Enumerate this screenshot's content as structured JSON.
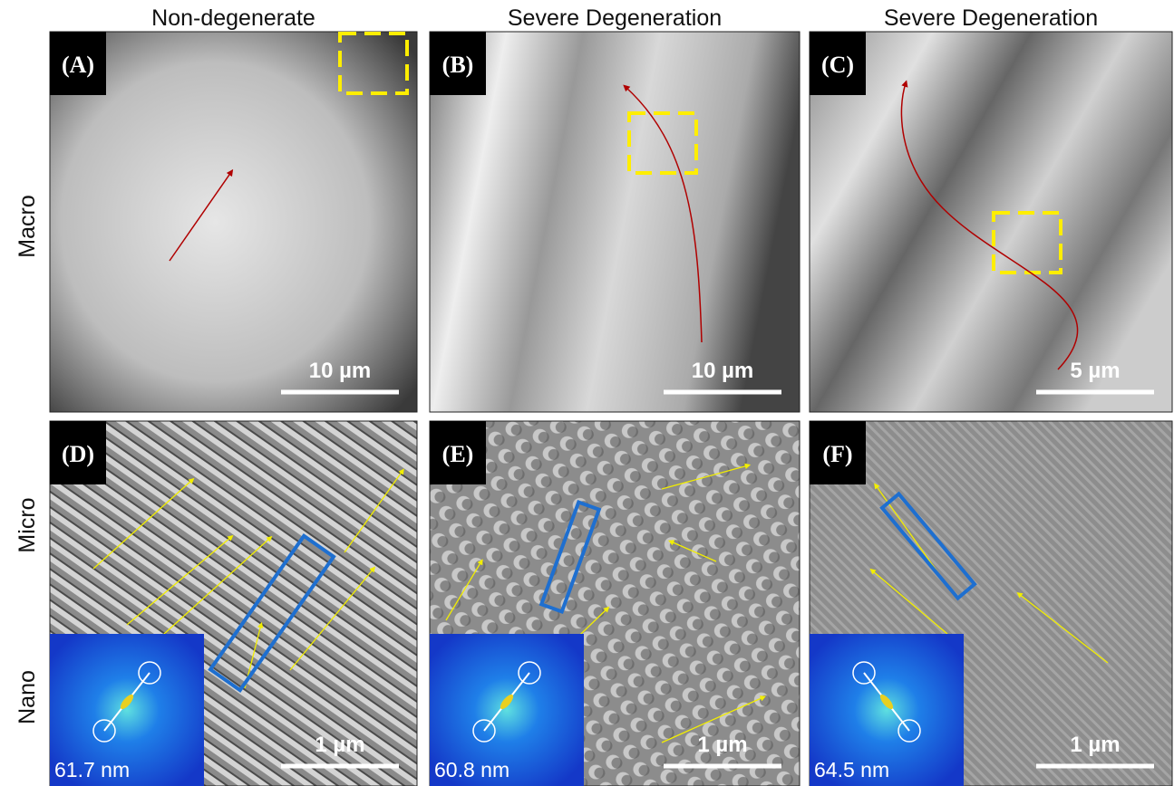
{
  "column_titles": [
    "Non-degenerate",
    "Severe Degeneration",
    "Severe Degeneration"
  ],
  "row_labels": [
    "Macro",
    "Micro",
    "Nano"
  ],
  "panels": [
    {
      "label": "(A)",
      "scale_bar": "10 µm"
    },
    {
      "label": "(B)",
      "scale_bar": "10 µm"
    },
    {
      "label": "(C)",
      "scale_bar": "5 µm"
    },
    {
      "label": "(D)",
      "scale_bar": "1 µm"
    },
    {
      "label": "(E)",
      "scale_bar": "1 µm"
    },
    {
      "label": "(F)",
      "scale_bar": "1 µm"
    }
  ],
  "insets": [
    {
      "value": "61.7 nm"
    },
    {
      "value": "60.8 nm"
    },
    {
      "value": "64.5 nm"
    }
  ]
}
